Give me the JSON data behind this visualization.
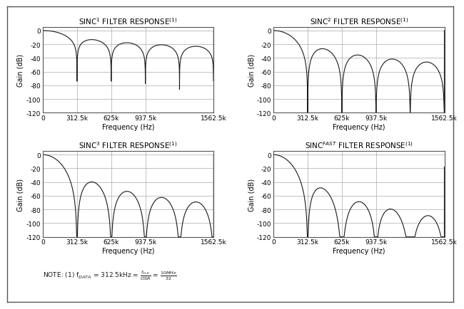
{
  "titles": [
    "SINC¹ FILTER RESPONSE¹",
    "SINC² FILTER RESPONSE¹",
    "SINC³ FILTER RESPONSE¹",
    "SINCFAST FILTER RESPONSE¹"
  ],
  "xlabel": "Frequency (Hz)",
  "ylabel": "Gain (dB)",
  "ylim": [
    -120,
    5
  ],
  "xlim": [
    0,
    1562500
  ],
  "yticks": [
    0,
    -20,
    -40,
    -60,
    -80,
    -100,
    -120
  ],
  "xtick_vals": [
    0,
    312500,
    625000,
    937500,
    1562500
  ],
  "xtick_labels": [
    "0",
    "312.5k",
    "625k",
    "937.5k",
    "1562.5k"
  ],
  "f_data": 312500,
  "f_clk": 10000000,
  "osr": 32,
  "sinc_orders": [
    1,
    2,
    3,
    "fast"
  ],
  "line_color": "#1a1a1a",
  "background_color": "#ffffff",
  "grid_color": "#aaaaaa",
  "note_text": "NOTE: (1) f$_{DATA}$ = 312.5kHz = $\\frac{f_{CLK}}{OSR}$ = $\\frac{10MHz}{32}$",
  "title_fontsize": 7.5,
  "axis_label_fontsize": 7,
  "tick_fontsize": 6.5,
  "note_fontsize": 6.5
}
